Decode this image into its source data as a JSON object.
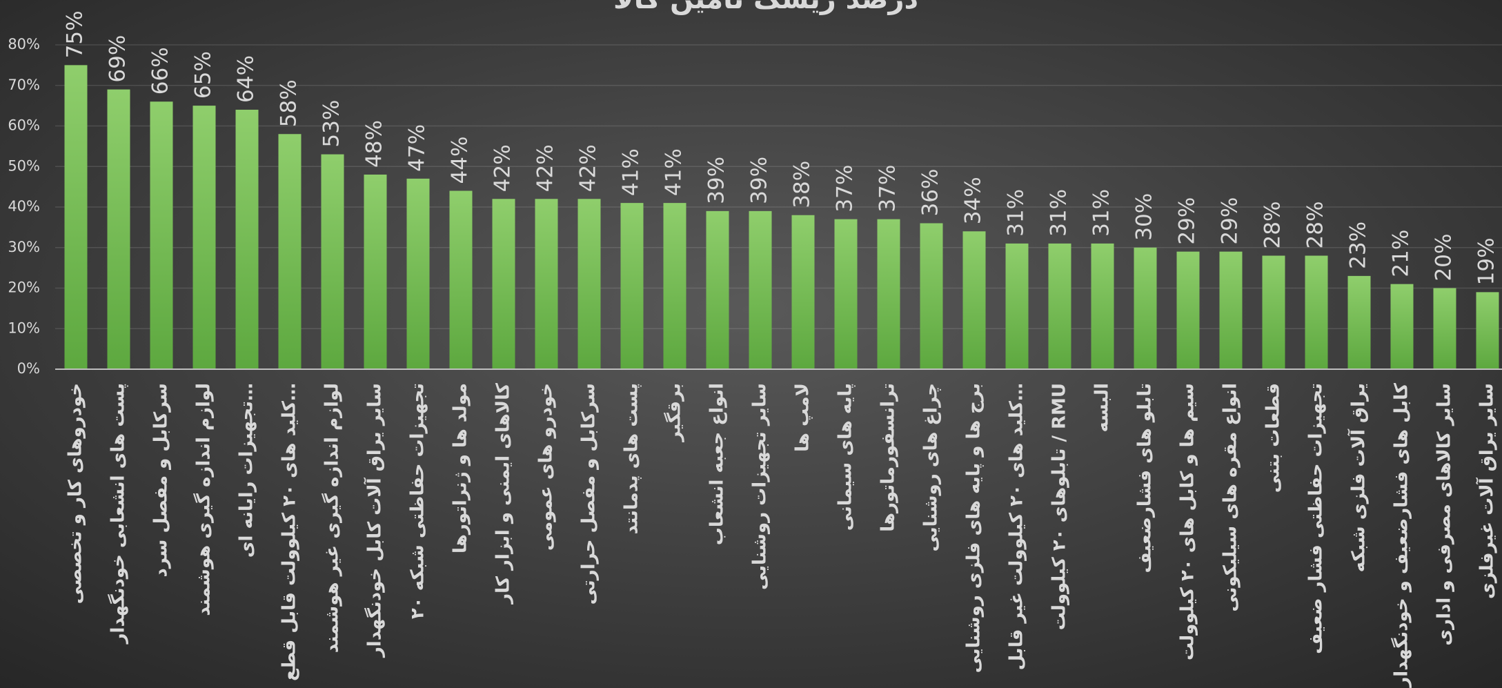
{
  "chart_data": {
    "type": "bar",
    "title": "درصد ریسک تامین کالا",
    "categories": [
      "خودروهای کار و تخصصی",
      "پست های انشعابی خودنگهدار",
      "سرکابل و مفصل سرد",
      "لوازم اندازه گیری هوشمند",
      "تجهیزات رایانه ای…",
      "کلید های ۲۰ کیلوولت قابل قطع…",
      "لوازم اندازه گیری غیر هوشمند",
      "سایر یراق آلات کابل خودنگهدار",
      "تجهیزات حفاظتی شبکه ۲۰",
      "مولد ها و ژنراتورها",
      "کالاهای ایمنی و ابزار کار",
      "خودرو های عمومی",
      "سرکابل و مفصل حرارتی",
      "پست های پدمانتد",
      "برقگیر",
      "انواع جعبه انشعاب",
      "سایر تجهیزات روشنایی",
      "لامپ ها",
      "پایه های سیمانی",
      "ترانسفورماتورها",
      "چراغ های روشنایی",
      "برج ها و پایه های فلزی روشنایی",
      "کلید های ۲۰ کیلوولت غیر قابل…",
      "تابلوهای ۲۰ کیلوولت / RMU",
      "البسه",
      "تابلو های فشارضعیف",
      "سیم ها و کابل های ۲۰ کیلوولت",
      "انواع مقره های سیلیکونی",
      "قطعات بتنی",
      "تجهیزات حفاظتی فشار ضعیف",
      "یراق آلات فلزی شبکه",
      "کابل های فشارضعیف و خودنگهدار",
      "سایر کالاهای مصرفی و اداری",
      "سایر یراق آلات غیرفلزی"
    ],
    "values": [
      75,
      69,
      66,
      65,
      64,
      58,
      53,
      48,
      47,
      44,
      42,
      42,
      42,
      41,
      41,
      39,
      39,
      38,
      37,
      37,
      36,
      34,
      31,
      31,
      31,
      30,
      29,
      29,
      28,
      28,
      23,
      21,
      20,
      19
    ],
    "value_labels": [
      "75%",
      "69%",
      "66%",
      "65%",
      "64%",
      "58%",
      "53%",
      "48%",
      "47%",
      "44%",
      "42%",
      "42%",
      "42%",
      "41%",
      "41%",
      "39%",
      "39%",
      "38%",
      "37%",
      "37%",
      "36%",
      "34%",
      "31%",
      "31%",
      "31%",
      "30%",
      "29%",
      "29%",
      "28%",
      "28%",
      "23%",
      "21%",
      "20%",
      "19%"
    ],
    "color": "#70b84c",
    "ylim": [
      0,
      80
    ],
    "yticks": [
      {
        "value": 0,
        "label": "0%"
      },
      {
        "value": 10,
        "label": "10%"
      },
      {
        "value": 20,
        "label": "20%"
      },
      {
        "value": 30,
        "label": "30%"
      },
      {
        "value": 40,
        "label": "40%"
      },
      {
        "value": 50,
        "label": "50%"
      },
      {
        "value": 60,
        "label": "60%"
      },
      {
        "value": 70,
        "label": "70%"
      },
      {
        "value": 80,
        "label": "80%"
      }
    ],
    "grid": true
  }
}
